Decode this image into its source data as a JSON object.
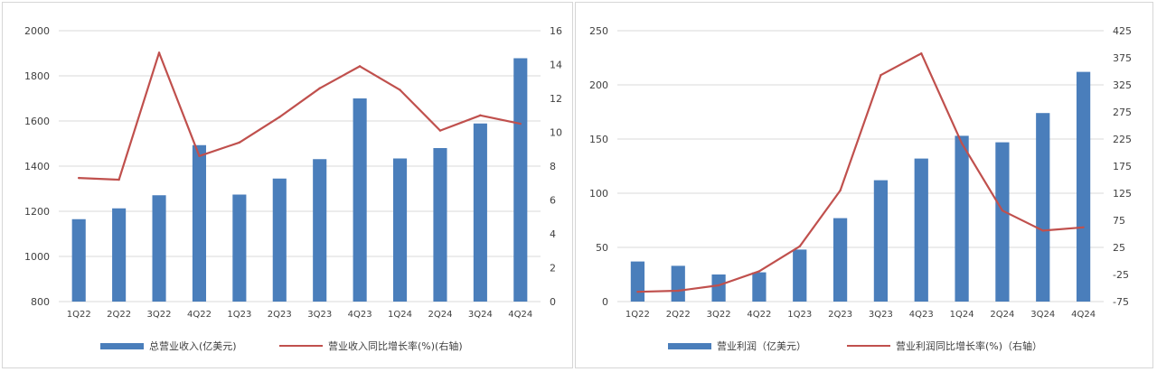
{
  "colors": {
    "bar": "#4a7ebb",
    "line": "#c0504d",
    "grid": "#d9d9d9"
  },
  "chart_data": [
    {
      "type": "bar",
      "categories": [
        "1Q22",
        "2Q22",
        "3Q22",
        "4Q22",
        "1Q23",
        "2Q23",
        "3Q23",
        "4Q23",
        "1Q24",
        "2Q24",
        "3Q24",
        "4Q24"
      ],
      "series": [
        {
          "name": "总营业收入(亿美元)",
          "type": "bar",
          "axis": "left",
          "values": [
            1165,
            1213,
            1271,
            1493,
            1274,
            1345,
            1431,
            1700,
            1434,
            1480,
            1589,
            1878
          ]
        },
        {
          "name": "营业收入同比增长率(%)(右轴)",
          "type": "line",
          "axis": "right",
          "values": [
            7.3,
            7.2,
            14.7,
            8.6,
            9.4,
            10.9,
            12.6,
            13.9,
            12.5,
            10.1,
            11.0,
            10.5
          ]
        }
      ],
      "ylim": [
        800,
        2000
      ],
      "yticks": [
        "800",
        "1000",
        "1200",
        "1400",
        "1600",
        "1800",
        "2000"
      ],
      "y2lim": [
        0,
        16
      ],
      "y2ticks": [
        "0",
        "2",
        "4",
        "6",
        "8",
        "10",
        "12",
        "14",
        "16"
      ],
      "legend_position": "bottom"
    },
    {
      "type": "bar",
      "categories": [
        "1Q22",
        "2Q22",
        "3Q22",
        "4Q22",
        "1Q23",
        "2Q23",
        "3Q23",
        "4Q23",
        "1Q24",
        "2Q24",
        "3Q24",
        "4Q24"
      ],
      "series": [
        {
          "name": "营业利润（亿美元）",
          "type": "bar",
          "axis": "left",
          "values": [
            37,
            33,
            25,
            27,
            48,
            77,
            112,
            132,
            153,
            147,
            174,
            212
          ]
        },
        {
          "name": "营业利润同比增长率(%)（右轴）",
          "type": "line",
          "axis": "right",
          "values": [
            -57,
            -55,
            -45,
            -19,
            27,
            130,
            343,
            383,
            217,
            93,
            56,
            62
          ]
        }
      ],
      "ylim": [
        0,
        250
      ],
      "yticks": [
        "0",
        "50",
        "100",
        "150",
        "200",
        "250"
      ],
      "y2lim": [
        -75,
        425
      ],
      "y2ticks": [
        "-75",
        "-25",
        "25",
        "75",
        "125",
        "175",
        "225",
        "275",
        "325",
        "375",
        "425"
      ],
      "legend_position": "bottom"
    }
  ]
}
